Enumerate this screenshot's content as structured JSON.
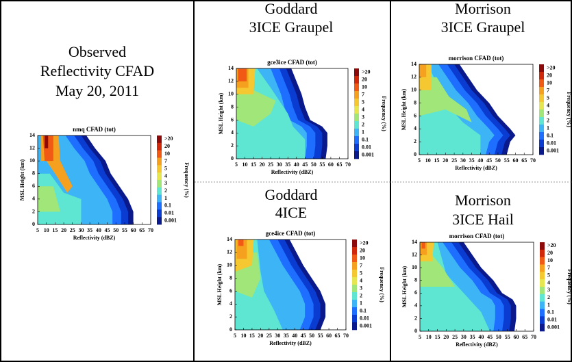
{
  "colorbar_colors": [
    "#8c0a0a",
    "#d2280a",
    "#f05a14",
    "#f5a01e",
    "#f5c832",
    "#e6e650",
    "#a0e678",
    "#5fe6d2",
    "#3cb4f5",
    "#1e6eff",
    "#0a3cd2",
    "#0a1a8c"
  ],
  "panels": [
    {
      "heading": [
        "Observed",
        "Reflectivity CFAD",
        "May 20, 2011"
      ],
      "chart": {
        "type": "contour",
        "title": "nmq CFAD (tot)",
        "x_label": "Reflectivity (dBZ)",
        "y_label": "MSL Height (km)",
        "colorbar_label": "Frequency (%)",
        "colorbar_levels": [
          ">20",
          "20",
          "10",
          "7",
          "5",
          "4",
          "3",
          "2",
          "1",
          "0.1",
          "0.01",
          "0.001"
        ],
        "xlim": [
          5,
          70
        ],
        "xticks": [
          5,
          10,
          15,
          20,
          25,
          30,
          35,
          40,
          45,
          50,
          55,
          60,
          65,
          70
        ],
        "ylim": [
          0,
          14
        ],
        "yticks": [
          0,
          2,
          4,
          6,
          8,
          10,
          12,
          14
        ]
      }
    },
    {
      "heading": [
        "Goddard",
        "3ICE Graupel"
      ],
      "chart": {
        "type": "contour",
        "title": "gce3ice CFAD (tot)",
        "x_label": "Reflectivity (dBZ)",
        "y_label": "MSL Height (km)",
        "colorbar_label": "Frequency (%)",
        "colorbar_levels": [
          ">20",
          "20",
          "10",
          "7",
          "5",
          "4",
          "3",
          "2",
          "1",
          "0.1",
          "0.01",
          "0.001"
        ],
        "xlim": [
          5,
          70
        ],
        "xticks": [
          5,
          10,
          15,
          20,
          25,
          30,
          35,
          40,
          45,
          50,
          55,
          60,
          65,
          70
        ],
        "ylim": [
          0,
          14
        ],
        "yticks": [
          0,
          2,
          4,
          6,
          8,
          10,
          12,
          14
        ]
      }
    },
    {
      "heading": [
        "Morrison",
        "3ICE Graupel"
      ],
      "chart": {
        "type": "contour",
        "title": "morrison CFAD (tot)",
        "x_label": "Reflectivity (dBZ)",
        "y_label": "MSL Height (km)",
        "colorbar_label": "Frequency (%)",
        "colorbar_levels": [
          ">20",
          "20",
          "10",
          "7",
          "5",
          "4",
          "3",
          "2",
          "1",
          "0.1",
          "0.01",
          "0.001"
        ],
        "xlim": [
          5,
          70
        ],
        "xticks": [
          5,
          10,
          15,
          20,
          25,
          30,
          35,
          40,
          45,
          50,
          55,
          60,
          65,
          70
        ],
        "ylim": [
          0,
          14
        ],
        "yticks": [
          0,
          2,
          4,
          6,
          8,
          10,
          12,
          14
        ]
      }
    },
    {
      "heading": [
        "Goddard",
        "4ICE"
      ],
      "chart": {
        "type": "contour",
        "title": "gce4ice CFAD (tot)",
        "x_label": "Reflectivity (dBZ)",
        "y_label": "MSL Height (km)",
        "colorbar_label": "Frequency (%)",
        "colorbar_levels": [
          ">20",
          "20",
          "10",
          "7",
          "5",
          "4",
          "3",
          "2",
          "1",
          "0.1",
          "0.01",
          "0.001"
        ],
        "xlim": [
          5,
          70
        ],
        "xticks": [
          5,
          10,
          15,
          20,
          25,
          30,
          35,
          40,
          45,
          50,
          55,
          60,
          65,
          70
        ],
        "ylim": [
          0,
          14
        ],
        "yticks": [
          0,
          2,
          4,
          6,
          8,
          10,
          12,
          14
        ]
      }
    },
    {
      "heading": [
        "Morrison",
        "3ICE Hail"
      ],
      "chart": {
        "type": "contour",
        "title": "morrison CFAD (tot)",
        "x_label": "Reflectivity (dBZ)",
        "y_label": "MSL Height (km)",
        "colorbar_label": "Frequency (%)",
        "colorbar_levels": [
          ">20",
          "20",
          "10",
          "7",
          "5",
          "4",
          "3",
          "2",
          "1",
          "0.1",
          "0.01",
          "0.001"
        ],
        "xlim": [
          5,
          70
        ],
        "xticks": [
          5,
          10,
          15,
          20,
          25,
          30,
          35,
          40,
          45,
          50,
          55,
          60,
          65,
          70
        ],
        "ylim": [
          0,
          14
        ],
        "yticks": [
          0,
          2,
          4,
          6,
          8,
          10,
          12,
          14
        ]
      }
    }
  ]
}
